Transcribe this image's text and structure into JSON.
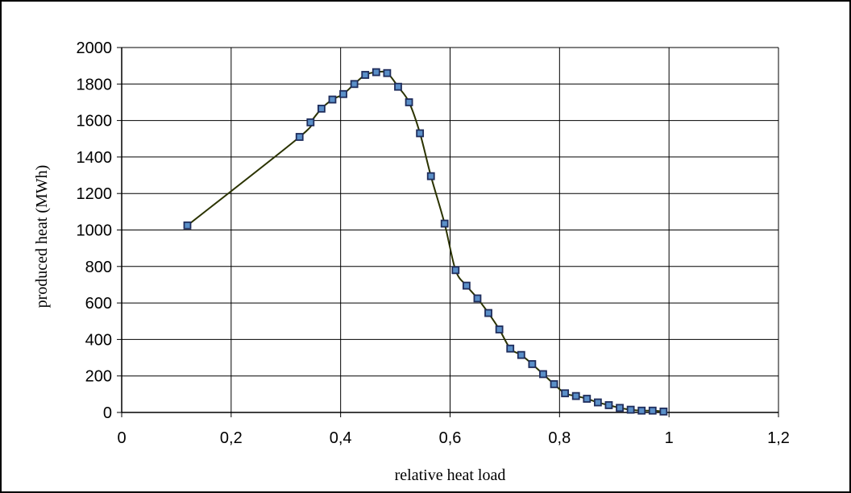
{
  "chart_data": {
    "type": "line",
    "title": "",
    "xlabel": "relative heat load",
    "ylabel": "produced heat (MWh)",
    "xlim": [
      0,
      1.2
    ],
    "ylim": [
      0,
      2000
    ],
    "x_ticks": [
      0,
      0.2,
      0.4,
      0.6,
      0.8,
      1,
      1.2
    ],
    "x_tick_labels": [
      "0",
      "0,2",
      "0,4",
      "0,6",
      "0,8",
      "1",
      "1,2"
    ],
    "y_ticks": [
      0,
      200,
      400,
      600,
      800,
      1000,
      1200,
      1400,
      1600,
      1800,
      2000
    ],
    "y_tick_labels": [
      "0",
      "200",
      "400",
      "600",
      "800",
      "1000",
      "1200",
      "1400",
      "1600",
      "1800",
      "2000"
    ],
    "grid": true,
    "legend": "none",
    "colors": {
      "line": "#2b3300",
      "marker_stroke": "#1f2d5c",
      "marker_fill": "#5a8fc8",
      "grid": "#000000",
      "axis": "#000000",
      "frame": "#000000"
    },
    "series": [
      {
        "x": [
          0.12,
          0.325,
          0.345,
          0.365,
          0.385,
          0.405,
          0.425,
          0.445,
          0.465,
          0.485,
          0.505,
          0.525,
          0.545,
          0.565,
          0.59,
          0.61,
          0.63,
          0.65,
          0.67,
          0.69,
          0.71,
          0.73,
          0.75,
          0.77,
          0.79,
          0.81,
          0.83,
          0.85,
          0.87,
          0.89,
          0.91,
          0.93,
          0.95,
          0.97,
          0.99
        ],
        "y": [
          1025,
          1510,
          1590,
          1665,
          1715,
          1745,
          1800,
          1850,
          1865,
          1860,
          1785,
          1700,
          1530,
          1295,
          1035,
          780,
          695,
          625,
          545,
          455,
          350,
          315,
          265,
          210,
          155,
          105,
          90,
          75,
          55,
          40,
          25,
          15,
          10,
          10,
          5
        ]
      }
    ]
  }
}
